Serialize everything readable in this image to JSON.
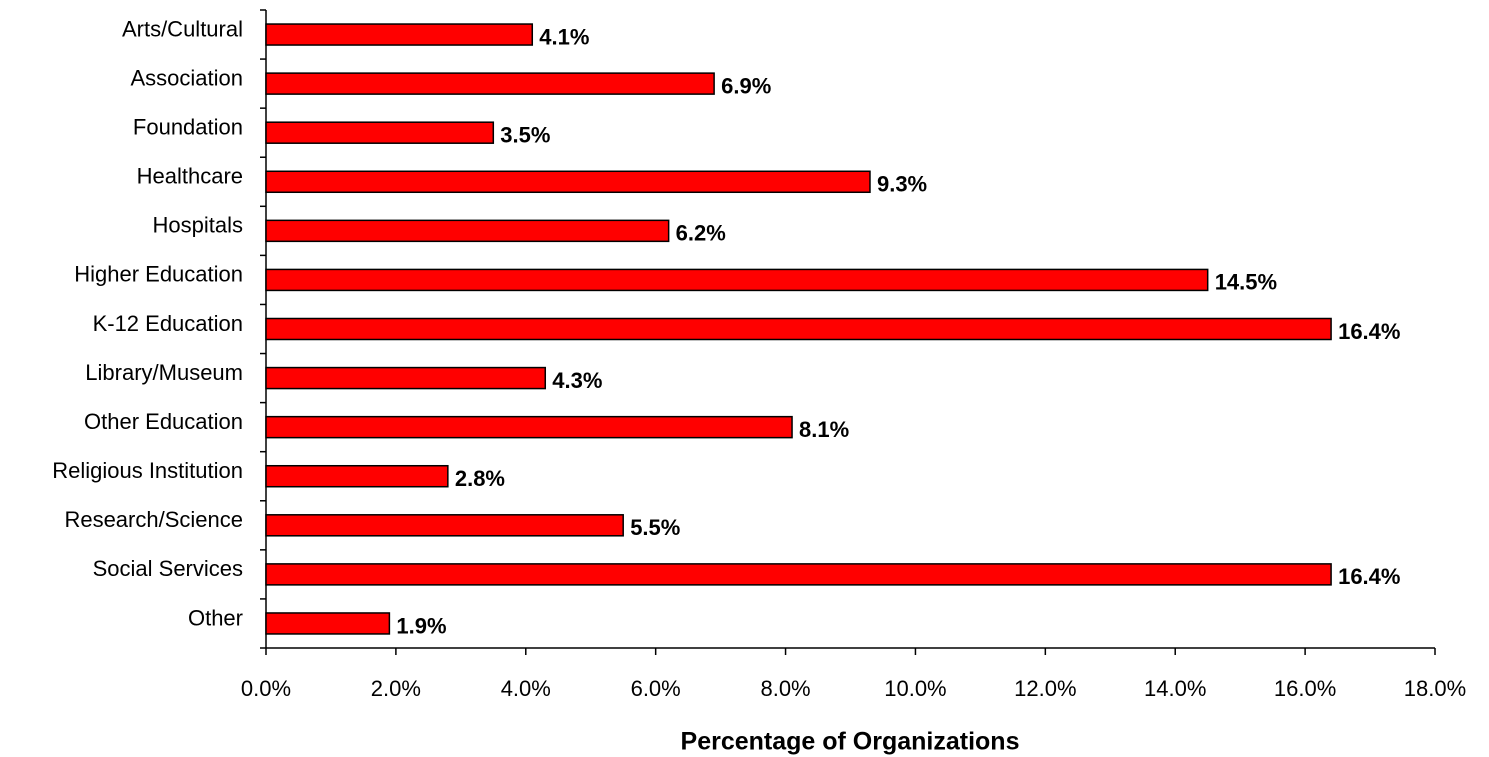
{
  "chart_data": {
    "type": "bar",
    "orientation": "horizontal",
    "categories": [
      "Arts/Cultural",
      "Association",
      "Foundation",
      "Healthcare",
      "Hospitals",
      "Higher Education",
      "K-12 Education",
      "Library/Museum",
      "Other Education",
      "Religious Institution",
      "Research/Science",
      "Social Services",
      "Other"
    ],
    "values": [
      4.1,
      6.9,
      3.5,
      9.3,
      6.2,
      14.5,
      16.4,
      4.3,
      8.1,
      2.8,
      5.5,
      16.4,
      1.9
    ],
    "value_labels": [
      "4.1%",
      "6.9%",
      "3.5%",
      "9.3%",
      "6.2%",
      "14.5%",
      "16.4%",
      "4.3%",
      "8.1%",
      "2.8%",
      "5.5%",
      "16.4%",
      "1.9%"
    ],
    "color": "#ff0000",
    "xlim": [
      0,
      18
    ],
    "xticks": [
      {
        "value": 0,
        "label": "0.0%"
      },
      {
        "value": 2,
        "label": "2.0%"
      },
      {
        "value": 4,
        "label": "4.0%"
      },
      {
        "value": 6,
        "label": "6.0%"
      },
      {
        "value": 8,
        "label": "8.0%"
      },
      {
        "value": 10,
        "label": "10.0%"
      },
      {
        "value": 12,
        "label": "12.0%"
      },
      {
        "value": 14,
        "label": "14.0%"
      },
      {
        "value": 16,
        "label": "16.0%"
      },
      {
        "value": 18,
        "label": "18.0%"
      }
    ],
    "x_label": "Percentage of Organizations",
    "grid": false
  }
}
